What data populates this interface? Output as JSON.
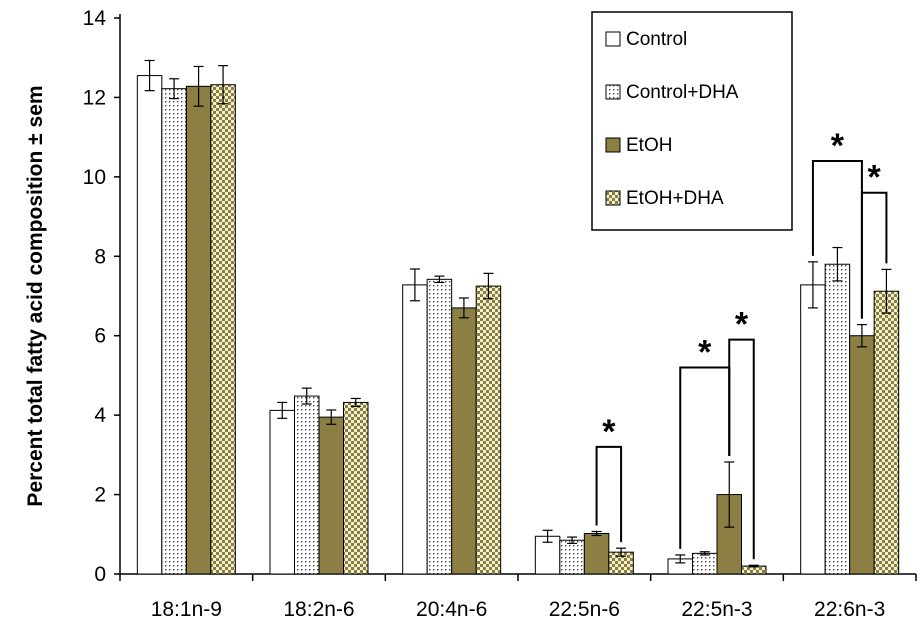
{
  "chart_data": {
    "type": "bar",
    "title": "",
    "xlabel": "",
    "ylabel": "Percent total fatty acid composition ± sem",
    "ylim": [
      0,
      14
    ],
    "yticks": [
      0,
      2,
      4,
      6,
      8,
      10,
      12,
      14
    ],
    "grid": false,
    "legend_position": "top-right",
    "categories": [
      "18:1n-9",
      "18:2n-6",
      "20:4n-6",
      "22:5n-6",
      "22:5n-3",
      "22:6n-3"
    ],
    "series": [
      {
        "name": "Control",
        "pattern": "white",
        "values": [
          12.55,
          4.12,
          7.28,
          0.95,
          0.38,
          7.28
        ],
        "errors": [
          0.38,
          0.2,
          0.4,
          0.15,
          0.1,
          0.58
        ]
      },
      {
        "name": "Control+DHA",
        "pattern": "dots",
        "values": [
          12.22,
          4.48,
          7.42,
          0.85,
          0.52,
          7.8
        ],
        "errors": [
          0.25,
          0.2,
          0.08,
          0.08,
          0.04,
          0.42
        ]
      },
      {
        "name": "EtOH",
        "pattern": "olive",
        "values": [
          12.28,
          3.95,
          6.7,
          1.02,
          2.0,
          6.0
        ],
        "errors": [
          0.5,
          0.18,
          0.25,
          0.05,
          0.82,
          0.28
        ]
      },
      {
        "name": "EtOH+DHA",
        "pattern": "checker",
        "values": [
          12.32,
          4.32,
          7.25,
          0.55,
          0.2,
          7.12
        ],
        "errors": [
          0.48,
          0.1,
          0.32,
          0.1,
          0.02,
          0.55
        ]
      }
    ],
    "significance": [
      {
        "category": 3,
        "from_series": 2,
        "to_series": 3,
        "label": "*",
        "bracket_y": 3.2
      },
      {
        "category": 4,
        "from_series": 0,
        "to_series": 2,
        "label": "*",
        "bracket_y": 5.2
      },
      {
        "category": 4,
        "from_series": 2,
        "to_series": 3,
        "label": "*",
        "bracket_y": 5.9
      },
      {
        "category": 5,
        "from_series": 0,
        "to_series": 2,
        "label": "*",
        "bracket_y": 10.4
      },
      {
        "category": 5,
        "from_series": 2,
        "to_series": 3,
        "label": "*",
        "bracket_y": 9.6
      }
    ]
  }
}
